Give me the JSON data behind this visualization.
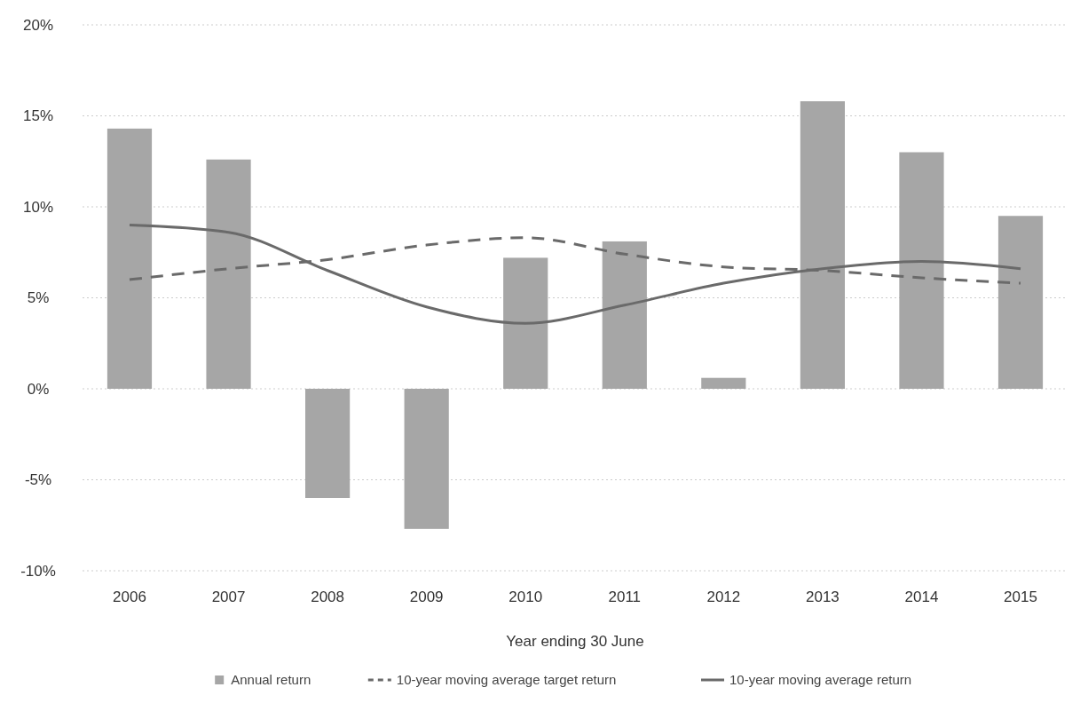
{
  "chart_data": {
    "type": "bar",
    "xlabel": "Year ending 30 June",
    "categories": [
      "2006",
      "2007",
      "2008",
      "2009",
      "2010",
      "2011",
      "2012",
      "2013",
      "2014",
      "2015"
    ],
    "series": [
      {
        "name": "Annual return",
        "color": "#a6a6a6",
        "values": [
          14.3,
          12.6,
          -6.0,
          -7.7,
          7.2,
          8.1,
          0.6,
          15.8,
          13.0,
          9.5
        ]
      },
      {
        "name": "10-year moving average target return",
        "type": "line",
        "line_style": "dashed",
        "color": "#6a6a6a",
        "values": [
          6.0,
          6.6,
          7.1,
          7.9,
          8.3,
          7.4,
          6.7,
          6.5,
          6.1,
          5.8
        ]
      },
      {
        "name": "10-year moving average return",
        "type": "line",
        "line_style": "solid",
        "color": "#6a6a6a",
        "values": [
          9.0,
          8.6,
          6.5,
          4.5,
          3.6,
          4.6,
          5.8,
          6.6,
          7.0,
          6.6
        ]
      }
    ],
    "ylim": [
      -10,
      20
    ],
    "yticks": [
      {
        "value": -10,
        "label": "-10%"
      },
      {
        "value": -5,
        "label": "-5%"
      },
      {
        "value": 0,
        "label": "0%"
      },
      {
        "value": 5,
        "label": "5%"
      },
      {
        "value": 10,
        "label": "10%"
      },
      {
        "value": 15,
        "label": "15%"
      },
      {
        "value": 20,
        "label": "20%"
      }
    ],
    "grid": "y",
    "legend": "bottom"
  }
}
